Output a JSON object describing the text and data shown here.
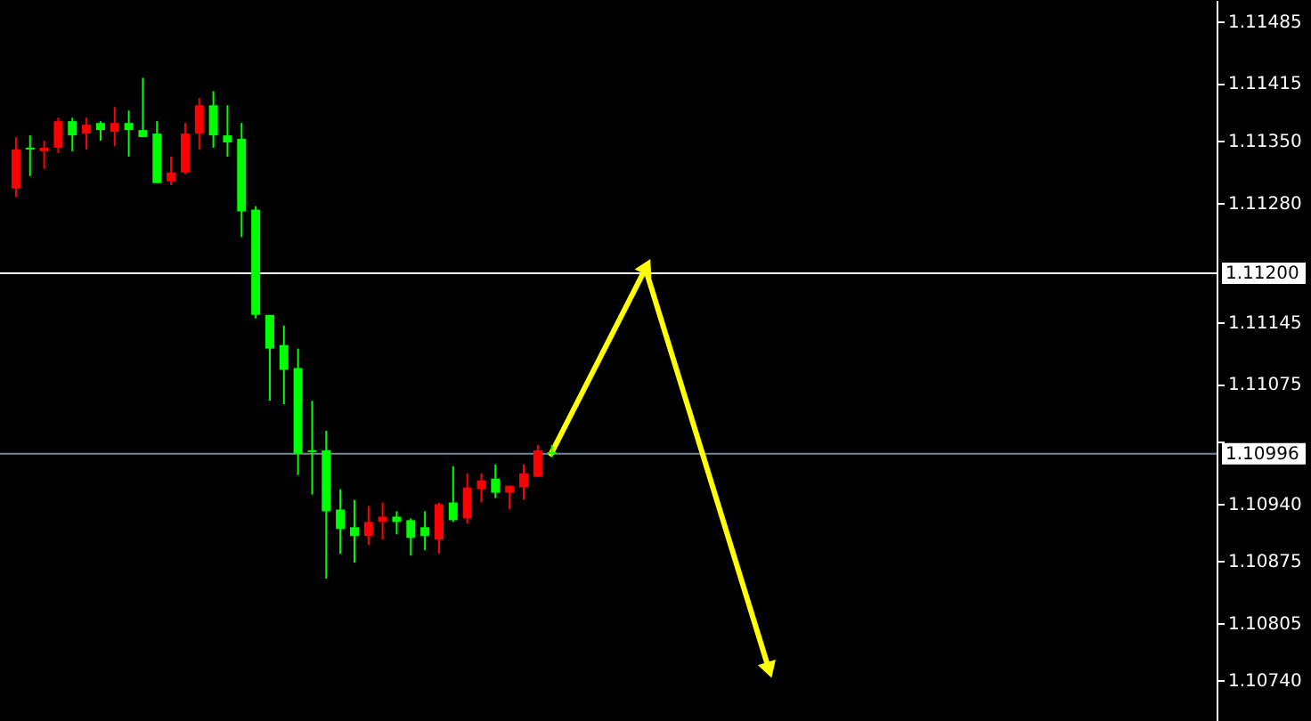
{
  "chart_data": {
    "type": "candlestick",
    "categories": [
      null,
      null,
      null,
      null,
      null,
      null,
      null,
      null,
      null,
      null,
      null,
      null,
      null,
      null,
      null,
      null,
      null,
      null,
      null,
      null,
      null,
      null,
      null,
      null,
      null,
      null,
      null,
      null,
      null,
      null,
      null,
      null,
      null,
      null,
      null,
      null,
      null,
      null,
      null,
      null,
      null,
      null,
      null,
      null,
      null,
      null,
      null,
      null,
      null,
      null,
      null,
      null,
      null,
      null,
      null,
      null,
      null,
      null,
      null,
      null,
      null,
      null,
      null,
      null,
      null,
      null,
      null,
      null,
      null,
      null,
      null,
      null,
      null,
      null,
      null,
      null,
      null,
      null,
      null,
      null,
      null,
      null,
      null,
      null,
      null
    ],
    "ohlc": [
      [
        1.11296,
        1.11354,
        1.11286,
        1.1134
      ],
      [
        1.11342,
        1.11356,
        1.1131,
        1.1134
      ],
      [
        1.11338,
        1.1135,
        1.11318,
        1.11342
      ],
      [
        1.11342,
        1.11376,
        1.11336,
        1.11372
      ],
      [
        1.11372,
        1.11376,
        1.11338,
        1.11356
      ],
      [
        1.11358,
        1.11376,
        1.1134,
        1.11368
      ],
      [
        1.1137,
        1.11372,
        1.1135,
        1.11362
      ],
      [
        1.1136,
        1.11388,
        1.11344,
        1.1137
      ],
      [
        1.1137,
        1.11384,
        1.11332,
        1.11362
      ],
      [
        1.11362,
        1.11421,
        1.11354,
        1.11354
      ],
      [
        1.11358,
        1.11372,
        1.11302,
        1.11302
      ],
      [
        1.11304,
        1.11332,
        1.113,
        1.11314
      ],
      [
        1.11314,
        1.1137,
        1.11312,
        1.11358
      ],
      [
        1.11358,
        1.11398,
        1.1134,
        1.1139
      ],
      [
        1.1139,
        1.11406,
        1.11342,
        1.11356
      ],
      [
        1.11356,
        1.1139,
        1.11332,
        1.11348
      ],
      [
        1.11352,
        1.1137,
        1.11241,
        1.1127
      ],
      [
        1.11272,
        1.11276,
        1.11149,
        1.11153
      ],
      [
        1.11153,
        1.11153,
        1.11056,
        1.11115
      ],
      [
        1.11119,
        1.11141,
        1.11052,
        1.11091
      ],
      [
        1.11093,
        1.11115,
        1.10972,
        1.10996
      ],
      [
        1.11,
        1.11056,
        1.1095,
        1.10998
      ],
      [
        1.11,
        1.11022,
        1.10855,
        1.10931
      ],
      [
        1.10933,
        1.10956,
        1.10883,
        1.10911
      ],
      [
        1.10913,
        1.10944,
        1.10873,
        1.10903
      ],
      [
        1.10903,
        1.10937,
        1.10893,
        1.10919
      ],
      [
        1.10919,
        1.10941,
        1.10899,
        1.10925
      ],
      [
        1.10925,
        1.10931,
        1.10905,
        1.10919
      ],
      [
        1.10921,
        1.10923,
        1.10881,
        1.10901
      ],
      [
        1.10913,
        1.10931,
        1.10887,
        1.10903
      ],
      [
        1.10899,
        1.10941,
        1.10883,
        1.10939
      ],
      [
        1.10941,
        1.10982,
        1.10919,
        1.10921
      ],
      [
        1.10923,
        1.10974,
        1.10917,
        1.10958
      ],
      [
        1.10956,
        1.10974,
        1.10941,
        1.10966
      ],
      [
        1.10968,
        1.10984,
        1.10946,
        1.10952
      ],
      [
        1.10952,
        1.1096,
        1.10933,
        1.1096
      ],
      [
        1.10958,
        1.10984,
        1.10944,
        1.10974
      ],
      [
        1.1097,
        1.11006,
        1.1097,
        1.11
      ],
      [
        1.10998,
        1.11006,
        1.10992,
        1.10996
      ],
      null,
      null,
      null,
      null,
      null,
      null,
      null,
      null,
      null,
      null,
      null,
      null,
      null,
      null,
      null,
      null,
      null,
      null,
      null,
      null,
      null,
      null,
      null,
      null,
      null,
      null,
      null,
      null,
      null,
      null,
      null,
      null,
      null,
      null,
      null,
      null,
      null,
      null,
      null,
      null,
      null,
      null,
      null,
      null,
      null,
      null
    ],
    "colors": [
      "#ff0000",
      "#00ff00",
      "#ff0000",
      "#ff0000",
      "#00ff00",
      "#ff0000",
      "#00ff00",
      "#ff0000",
      "#00ff00",
      "#00ff00",
      "#00ff00",
      "#ff0000",
      "#ff0000",
      "#ff0000",
      "#00ff00",
      "#00ff00",
      "#00ff00",
      "#00ff00",
      "#00ff00",
      "#00ff00",
      "#00ff00",
      "#00ff00",
      "#00ff00",
      "#00ff00",
      "#00ff00",
      "#ff0000",
      "#ff0000",
      "#00ff00",
      "#00ff00",
      "#00ff00",
      "#ff0000",
      "#00ff00",
      "#ff0000",
      "#ff0000",
      "#00ff00",
      "#ff0000",
      "#ff0000",
      "#ff0000",
      "#00ff00",
      null,
      null,
      null,
      null,
      null,
      null,
      null,
      null,
      null,
      null,
      null,
      null,
      null,
      null,
      null,
      null,
      null,
      null,
      null,
      null,
      null,
      null,
      null,
      null,
      null,
      null,
      null,
      null,
      null,
      null,
      null,
      null,
      null,
      null,
      null,
      null,
      null,
      null,
      null,
      null,
      null,
      null,
      null,
      null,
      null,
      null
    ],
    "ref_lines": [
      {
        "axis": "y",
        "value": 1.112,
        "label": "1.11200",
        "color": "#ffffff"
      },
      {
        "axis": "y",
        "value": 1.10996,
        "label": "1.10996",
        "color": "#778899"
      }
    ],
    "ylim": [
      1.10694,
      1.11509
    ],
    "yticks": [
      {
        "value": 1.11485,
        "label": "1.11485"
      },
      {
        "value": 1.11415,
        "label": "1.11415"
      },
      {
        "value": 1.1135,
        "label": "1.11350"
      },
      {
        "value": 1.1128,
        "label": "1.11280"
      },
      {
        "value": 1.11145,
        "label": "1.11145"
      },
      {
        "value": 1.11075,
        "label": "1.11075"
      },
      {
        "value": 1.1101,
        "label": null
      },
      {
        "value": 1.1094,
        "label": "1.10940"
      },
      {
        "value": 1.10875,
        "label": "1.10875"
      },
      {
        "value": 1.10805,
        "label": "1.10805"
      },
      {
        "value": 1.1074,
        "label": "1.10740"
      }
    ],
    "tick_labels": "y",
    "grid": false
  }
}
